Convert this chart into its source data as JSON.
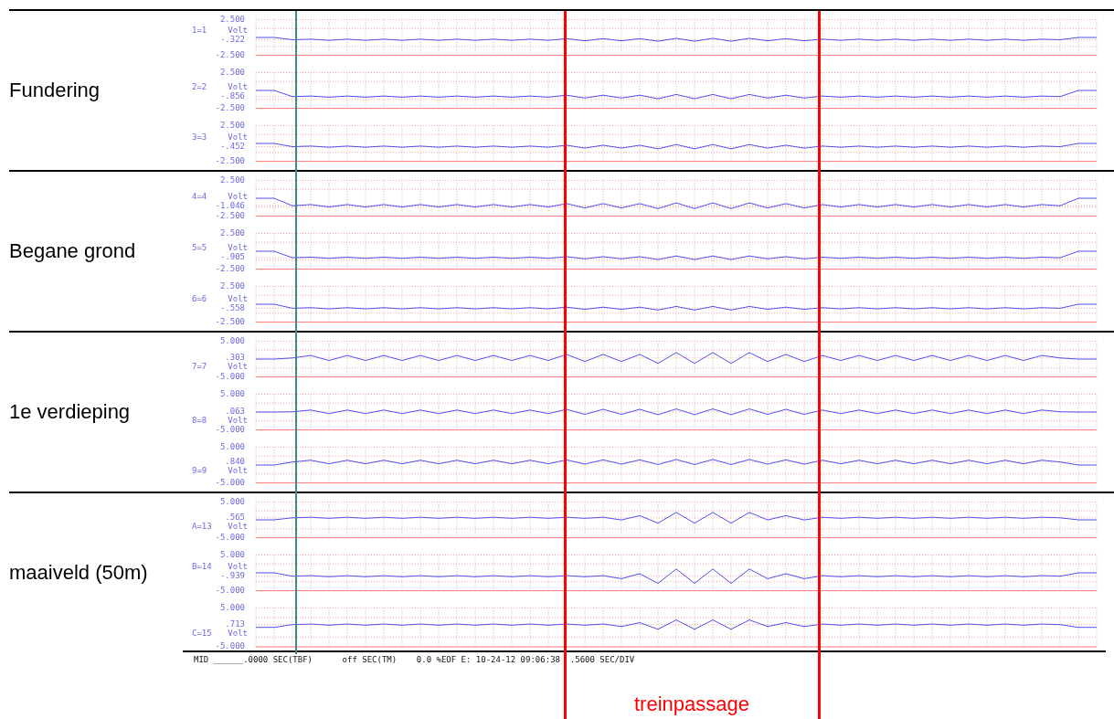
{
  "chart_data": [
    {
      "type": "line",
      "title": "Fundering",
      "ylabel": "1=1",
      "annotations": [
        "Volt"
      ],
      "categories": [
        null,
        null,
        null,
        null,
        null,
        null,
        null,
        null,
        null,
        null,
        null,
        null,
        null,
        null,
        null,
        null,
        null,
        null,
        null,
        null,
        null,
        null,
        null,
        null,
        null,
        null,
        null,
        null,
        null,
        null,
        null,
        null,
        null,
        null,
        null,
        null,
        null,
        null,
        null,
        null,
        null,
        null,
        null,
        null,
        null,
        null,
        null
      ],
      "series": [
        {
          "color": "#5050f0",
          "values": [
            0,
            0,
            -0.32,
            -0.24,
            -0.4,
            -0.24,
            -0.4,
            -0.24,
            -0.4,
            -0.24,
            -0.4,
            -0.24,
            -0.4,
            -0.24,
            -0.4,
            -0.24,
            -0.4,
            -0.17,
            -0.47,
            -0.17,
            -0.47,
            -0.17,
            -0.52,
            -0.12,
            -0.52,
            -0.12,
            -0.52,
            -0.12,
            -0.47,
            -0.17,
            -0.47,
            -0.24,
            -0.4,
            -0.24,
            -0.4,
            -0.24,
            -0.4,
            -0.24,
            -0.4,
            -0.24,
            -0.4,
            -0.24,
            -0.4,
            -0.24,
            -0.32,
            0,
            0
          ]
        }
      ],
      "ylim": [
        -2.5,
        2.5
      ],
      "yticks": [
        {
          "value": -2.5,
          "label": "-2.500"
        },
        {
          "value": -1.25,
          "label": null
        },
        {
          "value": -0.322,
          "label": "-.322"
        },
        {
          "value": 1.25,
          "label": null
        },
        {
          "value": 2.5,
          "label": "2.500"
        }
      ],
      "grid": true,
      "tick_labels": "y"
    },
    {
      "type": "line",
      "ylabel": "2=2",
      "annotations": [
        "Volt"
      ],
      "categories": [
        null,
        null,
        null,
        null,
        null,
        null,
        null,
        null,
        null,
        null,
        null,
        null,
        null,
        null,
        null,
        null,
        null,
        null,
        null,
        null,
        null,
        null,
        null,
        null,
        null,
        null,
        null,
        null,
        null,
        null,
        null,
        null,
        null,
        null,
        null,
        null,
        null,
        null,
        null,
        null,
        null,
        null,
        null,
        null,
        null,
        null,
        null
      ],
      "series": [
        {
          "color": "#5050f0",
          "values": [
            0,
            0,
            -0.86,
            -0.78,
            -0.94,
            -0.78,
            -0.94,
            -0.78,
            -0.94,
            -0.78,
            -0.94,
            -0.78,
            -0.94,
            -0.78,
            -0.94,
            -0.78,
            -0.94,
            -0.66,
            -1.06,
            -0.66,
            -1.06,
            -0.66,
            -1.16,
            -0.56,
            -1.16,
            -0.56,
            -1.16,
            -0.56,
            -1.06,
            -0.66,
            -1.06,
            -0.78,
            -0.94,
            -0.78,
            -0.94,
            -0.78,
            -0.94,
            -0.78,
            -0.94,
            -0.78,
            -0.94,
            -0.78,
            -0.94,
            -0.78,
            -0.86,
            0,
            0
          ]
        }
      ],
      "ylim": [
        -2.5,
        2.5
      ],
      "yticks": [
        {
          "value": -2.5,
          "label": "-2.500"
        },
        {
          "value": -1.25,
          "label": null
        },
        {
          "value": -0.856,
          "label": "-.856"
        },
        {
          "value": 1.25,
          "label": null
        },
        {
          "value": 2.5,
          "label": "2.500"
        }
      ],
      "grid": true,
      "tick_labels": "y"
    },
    {
      "type": "line",
      "ylabel": "3=3",
      "annotations": [
        "Volt"
      ],
      "categories": [
        null,
        null,
        null,
        null,
        null,
        null,
        null,
        null,
        null,
        null,
        null,
        null,
        null,
        null,
        null,
        null,
        null,
        null,
        null,
        null,
        null,
        null,
        null,
        null,
        null,
        null,
        null,
        null,
        null,
        null,
        null,
        null,
        null,
        null,
        null,
        null,
        null,
        null,
        null,
        null,
        null,
        null,
        null,
        null,
        null,
        null,
        null
      ],
      "series": [
        {
          "color": "#5050f0",
          "values": [
            0,
            0,
            -0.45,
            -0.37,
            -0.53,
            -0.37,
            -0.53,
            -0.37,
            -0.53,
            -0.37,
            -0.53,
            -0.37,
            -0.53,
            -0.37,
            -0.53,
            -0.37,
            -0.53,
            -0.25,
            -0.65,
            -0.25,
            -0.65,
            -0.25,
            -0.75,
            -0.15,
            -0.75,
            -0.15,
            -0.75,
            -0.15,
            -0.65,
            -0.25,
            -0.65,
            -0.37,
            -0.53,
            -0.37,
            -0.53,
            -0.37,
            -0.53,
            -0.37,
            -0.53,
            -0.37,
            -0.53,
            -0.37,
            -0.53,
            -0.37,
            -0.45,
            0,
            0
          ]
        }
      ],
      "ylim": [
        -2.5,
        2.5
      ],
      "yticks": [
        {
          "value": -2.5,
          "label": "-2.500"
        },
        {
          "value": -1.25,
          "label": null
        },
        {
          "value": -0.452,
          "label": "-.452"
        },
        {
          "value": 1.25,
          "label": null
        },
        {
          "value": 2.5,
          "label": "2.500"
        }
      ],
      "grid": true,
      "tick_labels": "y"
    },
    {
      "type": "line",
      "title": "Begane grond",
      "ylabel": "4=4",
      "annotations": [
        "Volt"
      ],
      "categories": [
        null,
        null,
        null,
        null,
        null,
        null,
        null,
        null,
        null,
        null,
        null,
        null,
        null,
        null,
        null,
        null,
        null,
        null,
        null,
        null,
        null,
        null,
        null,
        null,
        null,
        null,
        null,
        null,
        null,
        null,
        null,
        null,
        null,
        null,
        null,
        null,
        null,
        null,
        null,
        null,
        null,
        null,
        null,
        null,
        null,
        null,
        null
      ],
      "series": [
        {
          "color": "#5050f0",
          "values": [
            0,
            0,
            -1.05,
            -0.88,
            -1.22,
            -0.88,
            -1.22,
            -0.88,
            -1.22,
            -0.88,
            -1.22,
            -0.88,
            -1.22,
            -0.88,
            -1.22,
            -0.88,
            -1.22,
            -0.75,
            -1.35,
            -0.75,
            -1.35,
            -0.75,
            -1.45,
            -0.65,
            -1.45,
            -0.65,
            -1.45,
            -0.65,
            -1.35,
            -0.75,
            -1.35,
            -0.88,
            -1.22,
            -0.88,
            -1.22,
            -0.88,
            -1.22,
            -0.88,
            -1.22,
            -0.88,
            -1.22,
            -0.88,
            -1.22,
            -0.88,
            -1.05,
            0,
            0
          ]
        }
      ],
      "ylim": [
        -2.5,
        2.5
      ],
      "yticks": [
        {
          "value": -2.5,
          "label": "-2.500"
        },
        {
          "value": -1.25,
          "label": null
        },
        {
          "value": -1.046,
          "label": "-1.046"
        },
        {
          "value": 1.25,
          "label": null
        },
        {
          "value": 2.5,
          "label": "2.500"
        }
      ],
      "grid": true,
      "tick_labels": "y"
    },
    {
      "type": "line",
      "ylabel": "5=5",
      "annotations": [
        "Volt"
      ],
      "categories": [
        null,
        null,
        null,
        null,
        null,
        null,
        null,
        null,
        null,
        null,
        null,
        null,
        null,
        null,
        null,
        null,
        null,
        null,
        null,
        null,
        null,
        null,
        null,
        null,
        null,
        null,
        null,
        null,
        null,
        null,
        null,
        null,
        null,
        null,
        null,
        null,
        null,
        null,
        null,
        null,
        null,
        null,
        null,
        null,
        null,
        null,
        null
      ],
      "series": [
        {
          "color": "#5050f0",
          "values": [
            0,
            0,
            -0.91,
            -0.83,
            -0.99,
            -0.83,
            -0.99,
            -0.83,
            -0.99,
            -0.83,
            -0.99,
            -0.83,
            -0.99,
            -0.83,
            -0.99,
            -0.83,
            -0.99,
            -0.76,
            -1.06,
            -0.76,
            -1.06,
            -0.76,
            -1.16,
            -0.66,
            -1.16,
            -0.66,
            -1.16,
            -0.66,
            -1.06,
            -0.76,
            -1.06,
            -0.83,
            -0.99,
            -0.83,
            -0.99,
            -0.83,
            -0.99,
            -0.83,
            -0.99,
            -0.83,
            -0.99,
            -0.83,
            -0.99,
            -0.83,
            -0.91,
            0,
            0
          ]
        }
      ],
      "ylim": [
        -2.5,
        2.5
      ],
      "yticks": [
        {
          "value": -2.5,
          "label": "-2.500"
        },
        {
          "value": -1.25,
          "label": null
        },
        {
          "value": -0.905,
          "label": "-.905"
        },
        {
          "value": 1.25,
          "label": null
        },
        {
          "value": 2.5,
          "label": "2.500"
        }
      ],
      "grid": true,
      "tick_labels": "y"
    },
    {
      "type": "line",
      "ylabel": "6=6",
      "annotations": [
        "Volt"
      ],
      "categories": [
        null,
        null,
        null,
        null,
        null,
        null,
        null,
        null,
        null,
        null,
        null,
        null,
        null,
        null,
        null,
        null,
        null,
        null,
        null,
        null,
        null,
        null,
        null,
        null,
        null,
        null,
        null,
        null,
        null,
        null,
        null,
        null,
        null,
        null,
        null,
        null,
        null,
        null,
        null,
        null,
        null,
        null,
        null,
        null,
        null,
        null,
        null
      ],
      "series": [
        {
          "color": "#5050f0",
          "values": [
            0,
            0,
            -0.56,
            -0.48,
            -0.64,
            -0.48,
            -0.64,
            -0.48,
            -0.64,
            -0.48,
            -0.64,
            -0.48,
            -0.64,
            -0.48,
            -0.64,
            -0.48,
            -0.64,
            -0.41,
            -0.71,
            -0.41,
            -0.71,
            -0.41,
            -0.81,
            -0.31,
            -0.81,
            -0.31,
            -0.81,
            -0.31,
            -0.71,
            -0.41,
            -0.71,
            -0.48,
            -0.64,
            -0.48,
            -0.64,
            -0.48,
            -0.64,
            -0.48,
            -0.64,
            -0.48,
            -0.64,
            -0.48,
            -0.64,
            -0.48,
            -0.56,
            0,
            0
          ]
        }
      ],
      "ylim": [
        -2.5,
        2.5
      ],
      "yticks": [
        {
          "value": -2.5,
          "label": "-2.500"
        },
        {
          "value": -1.25,
          "label": null
        },
        {
          "value": -0.558,
          "label": "-.558"
        },
        {
          "value": 1.25,
          "label": null
        },
        {
          "value": 2.5,
          "label": "2.500"
        }
      ],
      "grid": true,
      "tick_labels": "y"
    },
    {
      "type": "line",
      "title": "1e verdieping",
      "ylabel": "7=7",
      "annotations": [
        "Volt"
      ],
      "categories": [
        null,
        null,
        null,
        null,
        null,
        null,
        null,
        null,
        null,
        null,
        null,
        null,
        null,
        null,
        null,
        null,
        null,
        null,
        null,
        null,
        null,
        null,
        null,
        null,
        null,
        null,
        null,
        null,
        null,
        null,
        null,
        null,
        null,
        null,
        null,
        null,
        null,
        null,
        null,
        null,
        null,
        null,
        null,
        null,
        null,
        null,
        null
      ],
      "series": [
        {
          "color": "#5050f0",
          "values": [
            0,
            0,
            0.3,
            1.0,
            -0.4,
            1.0,
            -0.4,
            1.0,
            -0.4,
            1.0,
            -0.4,
            1.0,
            -0.4,
            1.0,
            -0.4,
            1.0,
            -0.4,
            1.3,
            -0.7,
            1.3,
            -0.7,
            1.3,
            -1.2,
            1.8,
            -1.2,
            1.8,
            -1.2,
            1.8,
            -0.7,
            1.3,
            -0.7,
            1.0,
            -0.4,
            1.0,
            -0.4,
            1.0,
            -0.4,
            1.0,
            -0.4,
            1.0,
            -0.4,
            1.0,
            -0.4,
            1.0,
            0.3,
            0,
            0
          ]
        }
      ],
      "ylim": [
        -5,
        5
      ],
      "yticks": [
        {
          "value": -5,
          "label": "-5.000"
        },
        {
          "value": -2.5,
          "label": null
        },
        {
          "value": 0.303,
          "label": ".303"
        },
        {
          "value": 2.5,
          "label": null
        },
        {
          "value": 5,
          "label": "5.000"
        }
      ],
      "grid": true,
      "tick_labels": "y"
    },
    {
      "type": "line",
      "ylabel": "8=8",
      "annotations": [
        "Volt"
      ],
      "categories": [
        null,
        null,
        null,
        null,
        null,
        null,
        null,
        null,
        null,
        null,
        null,
        null,
        null,
        null,
        null,
        null,
        null,
        null,
        null,
        null,
        null,
        null,
        null,
        null,
        null,
        null,
        null,
        null,
        null,
        null,
        null,
        null,
        null,
        null,
        null,
        null,
        null,
        null,
        null,
        null,
        null,
        null,
        null,
        null,
        null,
        null,
        null
      ],
      "series": [
        {
          "color": "#5050f0",
          "values": [
            0,
            0,
            0.06,
            0.56,
            -0.44,
            0.56,
            -0.44,
            0.56,
            -0.44,
            0.56,
            -0.44,
            0.56,
            -0.44,
            0.56,
            -0.44,
            0.56,
            -0.44,
            0.76,
            -0.64,
            0.76,
            -0.64,
            0.76,
            -0.74,
            0.86,
            -0.74,
            0.86,
            -0.74,
            0.86,
            -0.64,
            0.76,
            -0.64,
            0.56,
            -0.44,
            0.56,
            -0.44,
            0.56,
            -0.44,
            0.56,
            -0.44,
            0.56,
            -0.44,
            0.56,
            -0.44,
            0.56,
            0.06,
            0,
            0
          ]
        }
      ],
      "ylim": [
        -5,
        5
      ],
      "yticks": [
        {
          "value": -5,
          "label": "-5.000"
        },
        {
          "value": -2.5,
          "label": null
        },
        {
          "value": 0.063,
          "label": ".063"
        },
        {
          "value": 2.5,
          "label": null
        },
        {
          "value": 5,
          "label": "5.000"
        }
      ],
      "grid": true,
      "tick_labels": "y"
    },
    {
      "type": "line",
      "ylabel": "9=9",
      "annotations": [
        "Volt"
      ],
      "categories": [
        null,
        null,
        null,
        null,
        null,
        null,
        null,
        null,
        null,
        null,
        null,
        null,
        null,
        null,
        null,
        null,
        null,
        null,
        null,
        null,
        null,
        null,
        null,
        null,
        null,
        null,
        null,
        null,
        null,
        null,
        null,
        null,
        null,
        null,
        null,
        null,
        null,
        null,
        null,
        null,
        null,
        null,
        null,
        null,
        null,
        null,
        null
      ],
      "series": [
        {
          "color": "#5050f0",
          "values": [
            0,
            0,
            0.84,
            1.34,
            0.34,
            1.34,
            0.34,
            1.34,
            0.34,
            1.34,
            0.34,
            1.34,
            0.34,
            1.34,
            0.34,
            1.34,
            0.34,
            1.44,
            0.24,
            1.44,
            0.24,
            1.44,
            0.14,
            1.54,
            0.14,
            1.54,
            0.14,
            1.54,
            0.24,
            1.44,
            0.24,
            1.34,
            0.34,
            1.34,
            0.34,
            1.34,
            0.34,
            1.34,
            0.34,
            1.34,
            0.34,
            1.34,
            0.34,
            1.34,
            0.84,
            0,
            0
          ]
        }
      ],
      "ylim": [
        -5,
        5
      ],
      "yticks": [
        {
          "value": -5,
          "label": "-5.000"
        },
        {
          "value": -2.5,
          "label": null
        },
        {
          "value": 0.84,
          "label": ".840"
        },
        {
          "value": 2.5,
          "label": null
        },
        {
          "value": 5,
          "label": "5.000"
        }
      ],
      "grid": true,
      "tick_labels": "y"
    },
    {
      "type": "line",
      "title": "maaiveld (50m)",
      "ylabel": "A=13",
      "annotations": [
        "Volt"
      ],
      "categories": [
        null,
        null,
        null,
        null,
        null,
        null,
        null,
        null,
        null,
        null,
        null,
        null,
        null,
        null,
        null,
        null,
        null,
        null,
        null,
        null,
        null,
        null,
        null,
        null,
        null,
        null,
        null,
        null,
        null,
        null,
        null,
        null,
        null,
        null,
        null,
        null,
        null,
        null,
        null,
        null,
        null,
        null,
        null,
        null,
        null,
        null,
        null
      ],
      "series": [
        {
          "color": "#5050f0",
          "values": [
            0,
            0,
            0.57,
            0.72,
            0.42,
            0.72,
            0.42,
            0.72,
            0.42,
            0.72,
            0.42,
            0.72,
            0.42,
            0.72,
            0.42,
            0.72,
            0.42,
            0.72,
            0.42,
            0.72,
            -0.03,
            1.17,
            -0.93,
            2.07,
            -0.93,
            2.07,
            -0.93,
            2.07,
            -0.03,
            1.17,
            -0.03,
            0.72,
            0.42,
            0.72,
            0.42,
            0.72,
            0.42,
            0.72,
            0.42,
            0.72,
            0.42,
            0.72,
            0.42,
            0.72,
            0.57,
            0,
            0
          ]
        }
      ],
      "ylim": [
        -5,
        5
      ],
      "yticks": [
        {
          "value": -5,
          "label": "-5.000"
        },
        {
          "value": -2.5,
          "label": null
        },
        {
          "value": 0.565,
          "label": ".565"
        },
        {
          "value": 2.5,
          "label": null
        },
        {
          "value": 5,
          "label": "5.000"
        }
      ],
      "grid": true,
      "tick_labels": "y"
    },
    {
      "type": "line",
      "ylabel": "B=14",
      "annotations": [
        "Volt"
      ],
      "categories": [
        null,
        null,
        null,
        null,
        null,
        null,
        null,
        null,
        null,
        null,
        null,
        null,
        null,
        null,
        null,
        null,
        null,
        null,
        null,
        null,
        null,
        null,
        null,
        null,
        null,
        null,
        null,
        null,
        null,
        null,
        null,
        null,
        null,
        null,
        null,
        null,
        null,
        null,
        null,
        null,
        null,
        null,
        null,
        null,
        null,
        null,
        null
      ],
      "series": [
        {
          "color": "#5050f0",
          "values": [
            0,
            0,
            -0.94,
            -0.79,
            -1.09,
            -0.79,
            -1.09,
            -0.79,
            -1.09,
            -0.79,
            -1.09,
            -0.79,
            -1.09,
            -0.79,
            -1.09,
            -0.79,
            -1.09,
            -0.79,
            -1.09,
            -0.79,
            -1.64,
            -0.24,
            -2.94,
            1.06,
            -2.94,
            1.06,
            -2.94,
            1.06,
            -1.64,
            -0.24,
            -1.64,
            -0.79,
            -1.09,
            -0.79,
            -1.09,
            -0.79,
            -1.09,
            -0.79,
            -1.09,
            -0.79,
            -1.09,
            -0.79,
            -1.09,
            -0.79,
            -0.94,
            0,
            0
          ]
        }
      ],
      "ylim": [
        -5,
        5
      ],
      "yticks": [
        {
          "value": -5,
          "label": "-5.000"
        },
        {
          "value": -2.5,
          "label": null
        },
        {
          "value": -0.939,
          "label": "-.939"
        },
        {
          "value": 2.5,
          "label": null
        },
        {
          "value": 5,
          "label": "5.000"
        }
      ],
      "grid": true,
      "tick_labels": "y"
    },
    {
      "type": "line",
      "ylabel": "C=15",
      "annotations": [
        "Volt",
        "MID ______.0000 SEC(TBF)      off SEC(TM)    0.0 %EOF E: 10-24-12 09:06:38  .5600 SEC/DIV",
        "treinpassage"
      ],
      "categories": [
        null,
        null,
        null,
        null,
        null,
        null,
        null,
        null,
        null,
        null,
        null,
        null,
        null,
        null,
        null,
        null,
        null,
        null,
        null,
        null,
        null,
        null,
        null,
        null,
        null,
        null,
        null,
        null,
        null,
        null,
        null,
        null,
        null,
        null,
        null,
        null,
        null,
        null,
        null,
        null,
        null,
        null,
        null,
        null,
        null,
        null,
        null
      ],
      "series": [
        {
          "color": "#5050f0",
          "values": [
            0,
            0,
            0.71,
            0.86,
            0.56,
            0.86,
            0.56,
            0.86,
            0.56,
            0.86,
            0.56,
            0.86,
            0.56,
            0.86,
            0.56,
            0.86,
            0.56,
            0.86,
            0.56,
            0.86,
            0.21,
            1.21,
            -0.49,
            1.91,
            -0.49,
            1.91,
            -0.49,
            1.91,
            0.21,
            1.21,
            0.21,
            0.86,
            0.56,
            0.86,
            0.56,
            0.86,
            0.56,
            0.86,
            0.56,
            0.86,
            0.56,
            0.86,
            0.56,
            0.86,
            0.71,
            0,
            0
          ]
        }
      ],
      "ylim": [
        -5,
        5
      ],
      "yticks": [
        {
          "value": -5,
          "label": "-5.000"
        },
        {
          "value": -2.5,
          "label": null
        },
        {
          "value": 0.713,
          "label": ".713"
        },
        {
          "value": 2.5,
          "label": null
        },
        {
          "value": 5,
          "label": "5.000"
        }
      ],
      "grid": true,
      "tick_labels": "y"
    }
  ]
}
